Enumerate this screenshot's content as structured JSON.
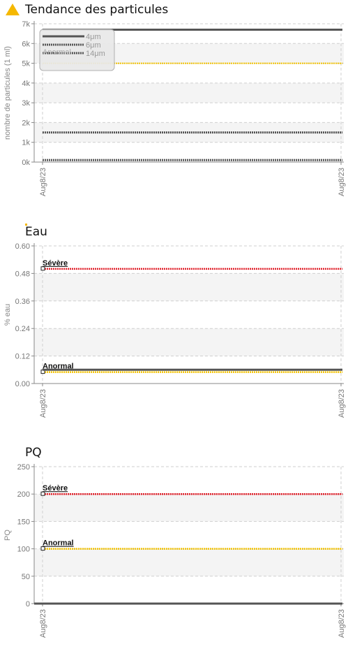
{
  "charts": [
    {
      "title": "Tendance des particules",
      "ylabel": "nombre de particules (1 ml)",
      "ticks": [
        "0k",
        "1k",
        "2k",
        "3k",
        "4k",
        "5k",
        "6k",
        "7k"
      ],
      "ymax": 7,
      "xticks": [
        "Aug8/23",
        "Aug8/23"
      ],
      "legend": [
        {
          "label": "4μm",
          "style": "solid"
        },
        {
          "label": "6μm",
          "style": "dotted"
        },
        {
          "label": "14μm",
          "style": "dotted",
          "extra": "Anormal"
        }
      ]
    },
    {
      "title": "Eau",
      "ylabel": "% eau",
      "ticks": [
        "0.00",
        "0.12",
        "0.24",
        "0.36",
        "0.48",
        "0.60"
      ],
      "ymax": 0.6,
      "xticks": [
        "Aug8/23",
        "Aug8/23"
      ],
      "limits": [
        {
          "label": "Sévère",
          "value": 0.5,
          "color": "#e0202a"
        },
        {
          "label": "Anormal",
          "value": 0.05,
          "color": "#f2c200"
        }
      ]
    },
    {
      "title": "PQ",
      "ylabel": "PQ",
      "ticks": [
        "0",
        "50",
        "100",
        "150",
        "200",
        "250"
      ],
      "ymax": 250,
      "xticks": [
        "Aug8/23",
        "Aug8/23"
      ],
      "limits": [
        {
          "label": "Sévère",
          "value": 200,
          "color": "#e0202a"
        },
        {
          "label": "Anormal",
          "value": 100,
          "color": "#f2c200"
        }
      ]
    }
  ],
  "chart_data": [
    {
      "type": "line",
      "title": "Tendance des particules",
      "ylabel": "nombre de particules (1 ml)",
      "ylim": [
        0,
        7000
      ],
      "x": [
        "Aug8/23",
        "Aug8/23"
      ],
      "series": [
        {
          "name": "4μm",
          "values": [
            6700,
            6700
          ]
        },
        {
          "name": "6μm",
          "values": [
            1500,
            1500
          ]
        },
        {
          "name": "14μm",
          "values": [
            100,
            100
          ]
        }
      ],
      "thresholds": [
        {
          "label": "Anormal",
          "value": 5000
        }
      ],
      "legend": "top-left"
    },
    {
      "type": "line",
      "title": "Eau",
      "ylabel": "% eau",
      "ylim": [
        0,
        0.6
      ],
      "x": [
        "Aug8/23",
        "Aug8/23"
      ],
      "series": [
        {
          "values": [
            0.06,
            0.06
          ]
        }
      ],
      "thresholds": [
        {
          "label": "Sévère",
          "value": 0.5
        },
        {
          "label": "Anormal",
          "value": 0.05
        }
      ]
    },
    {
      "type": "line",
      "title": "PQ",
      "ylabel": "PQ",
      "ylim": [
        0,
        250
      ],
      "x": [
        "Aug8/23",
        "Aug8/23"
      ],
      "series": [
        {
          "values": [
            0,
            0
          ]
        }
      ],
      "thresholds": [
        {
          "label": "Sévère",
          "value": 200
        },
        {
          "label": "Anormal",
          "value": 100
        }
      ]
    }
  ],
  "colors": {
    "severe": "#e0202a",
    "abnormal": "#f2c200",
    "series": "#555555",
    "warning": "#f5b800"
  },
  "icons": {
    "warning": "warning-triangle-icon"
  }
}
